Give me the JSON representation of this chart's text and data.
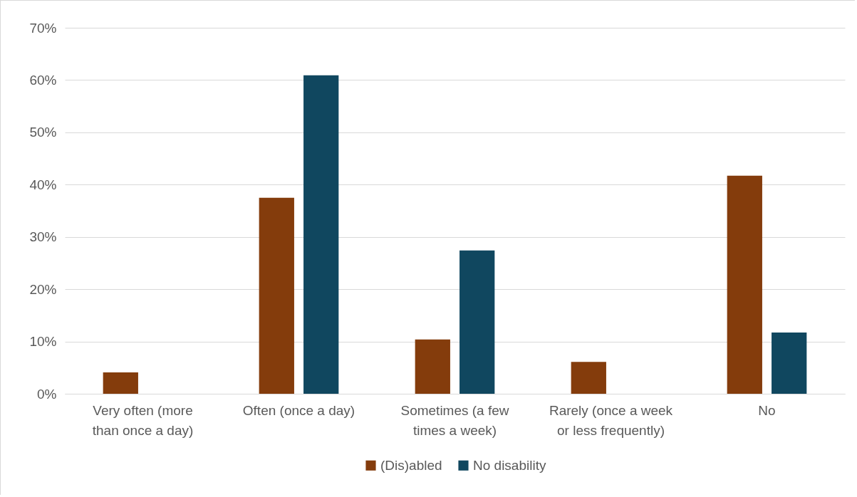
{
  "chart_data": {
    "type": "bar",
    "categories": [
      "Very often (more than once a day)",
      "Often (once a day)",
      "Sometimes (a few times a week)",
      "Rarely (once a week or less frequently)",
      "No"
    ],
    "series": [
      {
        "name": "(Dis)abled",
        "color": "#843c0c",
        "values": [
          4.1,
          37.5,
          10.4,
          6.1,
          41.7
        ]
      },
      {
        "name": "No disability",
        "color": "#10475f",
        "values": [
          0,
          60.9,
          27.4,
          0,
          11.7
        ]
      }
    ],
    "ylim": [
      0,
      70
    ],
    "yticks": [
      {
        "value": 0,
        "label": "0%"
      },
      {
        "value": 10,
        "label": "10%"
      },
      {
        "value": 20,
        "label": "20%"
      },
      {
        "value": 30,
        "label": "30%"
      },
      {
        "value": 40,
        "label": "40%"
      },
      {
        "value": 50,
        "label": "50%"
      },
      {
        "value": 60,
        "label": "60%"
      },
      {
        "value": 70,
        "label": "70%"
      }
    ],
    "grid": "y",
    "legend": "bottom"
  }
}
